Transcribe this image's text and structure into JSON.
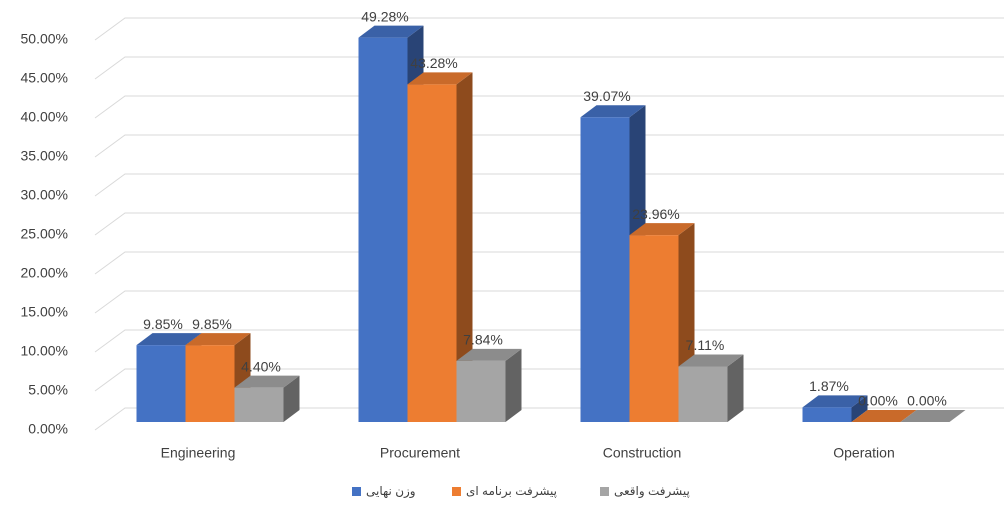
{
  "chart_data": {
    "type": "bar3d",
    "categories": [
      "Engineering",
      "Procurement",
      "Construction",
      "Operation"
    ],
    "series": [
      {
        "name": "وزن نهایی",
        "color": "#4472c4",
        "values": [
          9.85,
          49.28,
          39.07,
          1.87
        ],
        "value_labels": [
          "9.85%",
          "49.28%",
          "39.07%",
          "1.87%"
        ]
      },
      {
        "name": "پیشرفت برنامه ای",
        "color": "#ed7d31",
        "values": [
          9.85,
          43.28,
          23.96,
          0.0
        ],
        "value_labels": [
          "9.85%",
          "43.28%",
          "23.96%",
          "0.00%"
        ]
      },
      {
        "name": "پیشرفت واقعی",
        "color": "#a5a5a5",
        "values": [
          4.4,
          7.84,
          7.11,
          0.0
        ],
        "value_labels": [
          "4.40%",
          "7.84%",
          "7.11%",
          "0.00%"
        ]
      }
    ],
    "ylim": [
      0,
      50
    ],
    "yticks": [
      {
        "value": 0,
        "label": "0.00%"
      },
      {
        "value": 5,
        "label": "5.00%"
      },
      {
        "value": 10,
        "label": "10.00%"
      },
      {
        "value": 15,
        "label": "15.00%"
      },
      {
        "value": 20,
        "label": "20.00%"
      },
      {
        "value": 25,
        "label": "25.00%"
      },
      {
        "value": 30,
        "label": "30.00%"
      },
      {
        "value": 35,
        "label": "35.00%"
      },
      {
        "value": 40,
        "label": "40.00%"
      },
      {
        "value": 45,
        "label": "45.00%"
      },
      {
        "value": 50,
        "label": "50.00%"
      }
    ],
    "grid": true,
    "legend": "bottom"
  }
}
